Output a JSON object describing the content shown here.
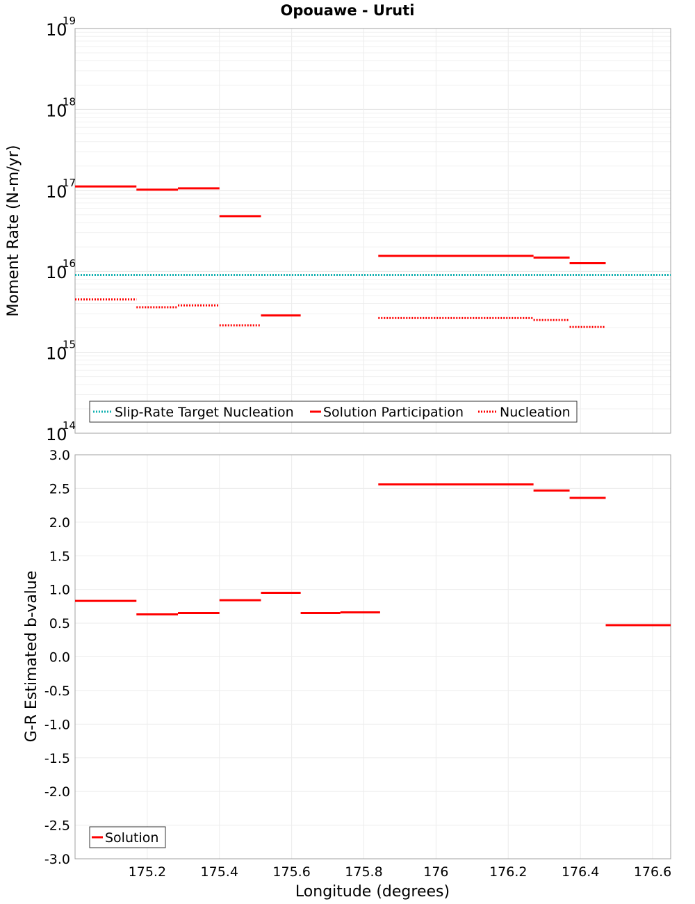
{
  "chart_data": [
    {
      "type": "line",
      "title": "Opouawe - Uruti",
      "xlabel": "",
      "ylabel": "Moment Rate (N-m/yr)",
      "yscale": "log",
      "xlim": [
        175.0,
        176.65
      ],
      "ylim_exp": [
        14,
        19
      ],
      "ytick_base": "10",
      "ytick_exponents": [
        "14",
        "15",
        "16",
        "17",
        "18",
        "19"
      ],
      "target_value": 9000000000000000.0,
      "segments_x": [
        [
          175.0,
          175.17
        ],
        [
          175.17,
          175.285
        ],
        [
          175.285,
          175.4
        ],
        [
          175.4,
          175.515
        ],
        [
          175.515,
          175.625
        ],
        [
          175.84,
          176.27
        ],
        [
          176.27,
          176.37
        ],
        [
          176.37,
          176.47
        ]
      ],
      "series": [
        {
          "name": "Slip-Rate Target Nucleation",
          "color": "#13b2b2",
          "style": "dotted",
          "x": [
            175.0,
            176.65
          ],
          "values": [
            9000000000000000.0,
            9000000000000000.0
          ]
        },
        {
          "name": "Solution Participation",
          "color": "#ff0000",
          "style": "solid",
          "segments": [
            0,
            1,
            2,
            3,
            4,
            5,
            6,
            7
          ],
          "values": [
            1.12e+17,
            1.02e+17,
            1.06e+17,
            4.8e+16,
            2850000000000000.0,
            1.55e+16,
            1.48e+16,
            1.26e+16
          ]
        },
        {
          "name": "Nucleation",
          "color": "#ff0000",
          "style": "dotted",
          "segments": [
            0,
            1,
            2,
            3,
            5,
            6,
            7
          ],
          "values": [
            4500000000000000.0,
            3600000000000000.0,
            3800000000000000.0,
            2150000000000000.0,
            2650000000000000.0,
            2500000000000000.0,
            2050000000000000.0
          ]
        }
      ],
      "legend": {
        "position": "bottom-left",
        "entries": [
          "Slip-Rate Target Nucleation",
          "Solution Participation",
          "Nucleation"
        ]
      }
    },
    {
      "type": "line",
      "xlabel": "Longitude (degrees)",
      "ylabel": "G-R Estimated b-value",
      "xlim": [
        175.0,
        176.65
      ],
      "ylim": [
        -3.0,
        3.0
      ],
      "xticks": [
        175.2,
        175.4,
        175.6,
        175.8,
        176.0,
        176.2,
        176.4,
        176.6
      ],
      "xtick_labels": [
        "175.2",
        "175.4",
        "175.6",
        "175.8",
        "176",
        "176.2",
        "176.4",
        "176.6"
      ],
      "yticks": [
        -3.0,
        -2.5,
        -2.0,
        -1.5,
        -1.0,
        -0.5,
        0.0,
        0.5,
        1.0,
        1.5,
        2.0,
        2.5,
        3.0
      ],
      "ytick_labels": [
        "-3.0",
        "-2.5",
        "-2.0",
        "-1.5",
        "-1.0",
        "-0.5",
        "0.0",
        "0.5",
        "1.0",
        "1.5",
        "2.0",
        "2.5",
        "3.0"
      ],
      "series": [
        {
          "name": "Solution",
          "color": "#ff0000",
          "style": "solid",
          "x": [
            [
              175.0,
              175.17
            ],
            [
              175.17,
              175.285
            ],
            [
              175.285,
              175.4
            ],
            [
              175.4,
              175.515
            ],
            [
              175.515,
              175.625
            ],
            [
              175.625,
              175.735
            ],
            [
              175.735,
              175.845
            ],
            [
              175.84,
              176.27
            ],
            [
              176.27,
              176.37
            ],
            [
              176.37,
              176.47
            ],
            [
              176.47,
              176.65
            ]
          ],
          "values": [
            0.83,
            0.63,
            0.65,
            0.84,
            0.95,
            0.65,
            0.66,
            2.56,
            2.47,
            2.36,
            0.47
          ]
        }
      ],
      "legend": {
        "position": "bottom-left",
        "entries": [
          "Solution"
        ]
      }
    }
  ]
}
